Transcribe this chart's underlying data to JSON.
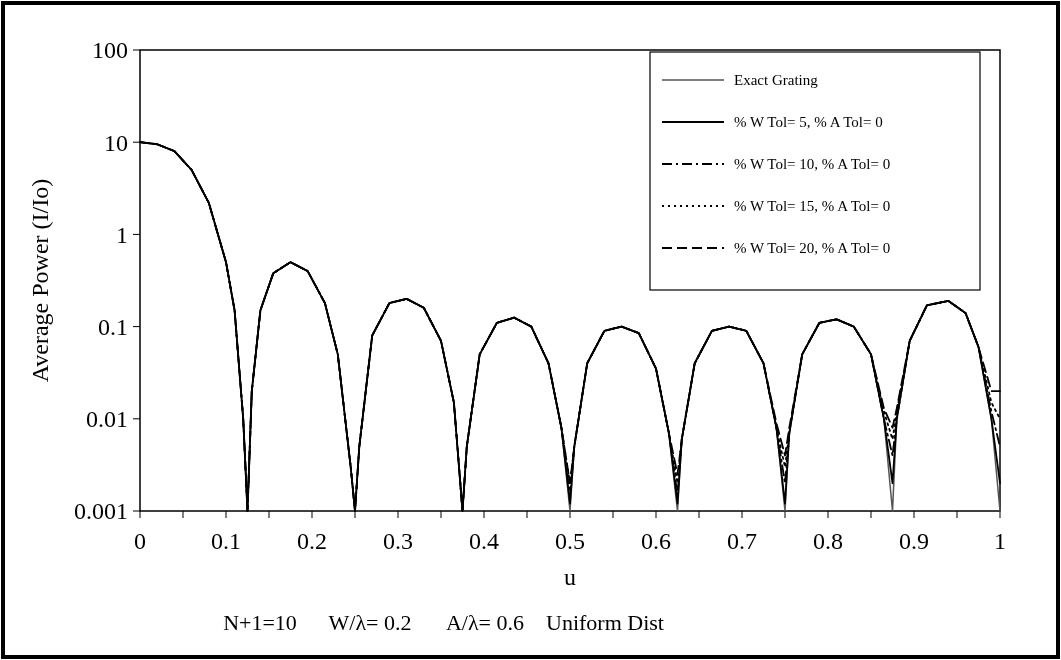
{
  "chart_data": {
    "type": "line",
    "xlabel": "u",
    "ylabel": "Average Power (I/Io)",
    "log": "y",
    "legend": "top right",
    "grid": false,
    "marker": "none",
    "annotations": [
      "N+1=10",
      "W/λ= 0.2",
      "A/λ= 0.6",
      "Uniform Dist"
    ],
    "xlim": [
      0,
      1
    ],
    "ylim": [
      0.001,
      100
    ],
    "xticks": [
      0,
      {
        "value": 0.05,
        "label": null
      },
      0.1,
      {
        "value": 0.15,
        "label": null
      },
      0.2,
      {
        "value": 0.25,
        "label": null
      },
      0.3,
      {
        "value": 0.35,
        "label": null
      },
      0.4,
      {
        "value": 0.45,
        "label": null
      },
      0.5,
      {
        "value": 0.55,
        "label": null
      },
      0.6,
      {
        "value": 0.65,
        "label": null
      },
      0.7,
      {
        "value": 0.75,
        "label": null
      },
      0.8,
      {
        "value": 0.85,
        "label": null
      },
      0.9,
      {
        "value": 0.95,
        "label": null
      },
      1
    ],
    "yticks": [
      0.001,
      0.01,
      0.1,
      1,
      10,
      100
    ],
    "x": [
      0,
      0.02,
      0.04,
      0.06,
      0.08,
      0.1,
      0.11,
      0.12,
      0.125,
      0.13,
      0.14,
      0.155,
      0.175,
      0.195,
      0.215,
      0.23,
      0.245,
      0.25,
      0.255,
      0.27,
      0.29,
      0.31,
      0.33,
      0.35,
      0.365,
      0.375,
      0.38,
      0.395,
      0.415,
      0.435,
      0.455,
      0.475,
      0.49,
      0.5,
      0.505,
      0.52,
      0.54,
      0.56,
      0.58,
      0.6,
      0.615,
      0.625,
      0.63,
      0.645,
      0.665,
      0.685,
      0.705,
      0.725,
      0.74,
      0.75,
      0.755,
      0.77,
      0.79,
      0.81,
      0.83,
      0.85,
      0.865,
      0.875,
      0.88,
      0.895,
      0.915,
      0.94,
      0.96,
      0.975,
      0.99,
      1
    ],
    "series": [
      {
        "name": "Exact Grating",
        "color": "#555555",
        "line_style": "solid",
        "values": [
          10,
          9.5,
          8,
          5,
          2.2,
          0.5,
          0.15,
          0.01,
          0.001,
          0.02,
          0.15,
          0.38,
          0.5,
          0.4,
          0.18,
          0.05,
          0.003,
          0.001,
          0.005,
          0.08,
          0.18,
          0.2,
          0.16,
          0.07,
          0.015,
          0.001,
          0.005,
          0.05,
          0.11,
          0.125,
          0.1,
          0.04,
          0.008,
          0.001,
          0.005,
          0.04,
          0.09,
          0.1,
          0.085,
          0.035,
          0.007,
          0.001,
          0.006,
          0.04,
          0.09,
          0.1,
          0.09,
          0.04,
          0.008,
          0.001,
          0.007,
          0.05,
          0.11,
          0.12,
          0.1,
          0.05,
          0.01,
          0.001,
          0.01,
          0.07,
          0.17,
          0.19,
          0.14,
          0.06,
          0.01,
          0.001
        ]
      },
      {
        "name": "% W Tol= 5, % A Tol=  0",
        "color": "#000000",
        "line_style": "solid",
        "values": [
          10,
          9.5,
          8,
          5,
          2.2,
          0.5,
          0.15,
          0.01,
          0.001,
          0.02,
          0.15,
          0.38,
          0.5,
          0.4,
          0.18,
          0.05,
          0.003,
          0.001,
          0.005,
          0.08,
          0.18,
          0.2,
          0.16,
          0.07,
          0.015,
          0.001,
          0.005,
          0.05,
          0.11,
          0.125,
          0.1,
          0.04,
          0.008,
          0.0012,
          0.005,
          0.04,
          0.09,
          0.1,
          0.085,
          0.035,
          0.007,
          0.0012,
          0.006,
          0.04,
          0.09,
          0.1,
          0.09,
          0.04,
          0.008,
          0.0012,
          0.007,
          0.05,
          0.11,
          0.12,
          0.1,
          0.05,
          0.01,
          0.002,
          0.01,
          0.07,
          0.17,
          0.19,
          0.14,
          0.06,
          0.01,
          0.002
        ]
      },
      {
        "name": "% W Tol= 10, % A Tol= 0",
        "color": "#000000",
        "line_style": "dashdot",
        "values": [
          10,
          9.5,
          8,
          5,
          2.2,
          0.5,
          0.15,
          0.01,
          0.001,
          0.02,
          0.15,
          0.38,
          0.5,
          0.4,
          0.18,
          0.05,
          0.003,
          0.001,
          0.005,
          0.08,
          0.18,
          0.2,
          0.16,
          0.07,
          0.015,
          0.001,
          0.005,
          0.05,
          0.11,
          0.125,
          0.1,
          0.04,
          0.008,
          0.0015,
          0.005,
          0.04,
          0.09,
          0.1,
          0.085,
          0.035,
          0.007,
          0.0015,
          0.006,
          0.04,
          0.09,
          0.1,
          0.09,
          0.04,
          0.008,
          0.002,
          0.007,
          0.05,
          0.11,
          0.12,
          0.1,
          0.05,
          0.01,
          0.004,
          0.01,
          0.07,
          0.17,
          0.19,
          0.14,
          0.06,
          0.012,
          0.005
        ]
      },
      {
        "name": "% W Tol= 15, % A Tol= 0",
        "color": "#000000",
        "line_style": "dotted",
        "values": [
          10,
          9.5,
          8,
          5,
          2.2,
          0.5,
          0.15,
          0.01,
          0.001,
          0.02,
          0.15,
          0.38,
          0.5,
          0.4,
          0.18,
          0.05,
          0.003,
          0.001,
          0.005,
          0.08,
          0.18,
          0.2,
          0.16,
          0.07,
          0.015,
          0.001,
          0.005,
          0.05,
          0.11,
          0.125,
          0.1,
          0.04,
          0.008,
          0.002,
          0.005,
          0.04,
          0.09,
          0.1,
          0.085,
          0.035,
          0.007,
          0.002,
          0.006,
          0.04,
          0.09,
          0.1,
          0.09,
          0.04,
          0.008,
          0.003,
          0.007,
          0.05,
          0.11,
          0.12,
          0.1,
          0.05,
          0.012,
          0.006,
          0.012,
          0.07,
          0.17,
          0.19,
          0.14,
          0.06,
          0.015,
          0.01
        ]
      },
      {
        "name": "% W Tol= 20, % A Tol= 0",
        "color": "#000000",
        "line_style": "dashed",
        "values": [
          10,
          9.5,
          8,
          5,
          2.2,
          0.5,
          0.15,
          0.01,
          0.001,
          0.02,
          0.15,
          0.38,
          0.5,
          0.4,
          0.18,
          0.05,
          0.003,
          0.001,
          0.005,
          0.08,
          0.18,
          0.2,
          0.16,
          0.07,
          0.015,
          0.001,
          0.005,
          0.05,
          0.11,
          0.125,
          0.1,
          0.04,
          0.008,
          0.002,
          0.005,
          0.04,
          0.09,
          0.1,
          0.085,
          0.035,
          0.007,
          0.0025,
          0.006,
          0.04,
          0.09,
          0.1,
          0.09,
          0.04,
          0.009,
          0.004,
          0.008,
          0.05,
          0.11,
          0.12,
          0.1,
          0.05,
          0.013,
          0.008,
          0.013,
          0.07,
          0.17,
          0.19,
          0.14,
          0.06,
          0.02,
          0.02
        ]
      }
    ]
  }
}
